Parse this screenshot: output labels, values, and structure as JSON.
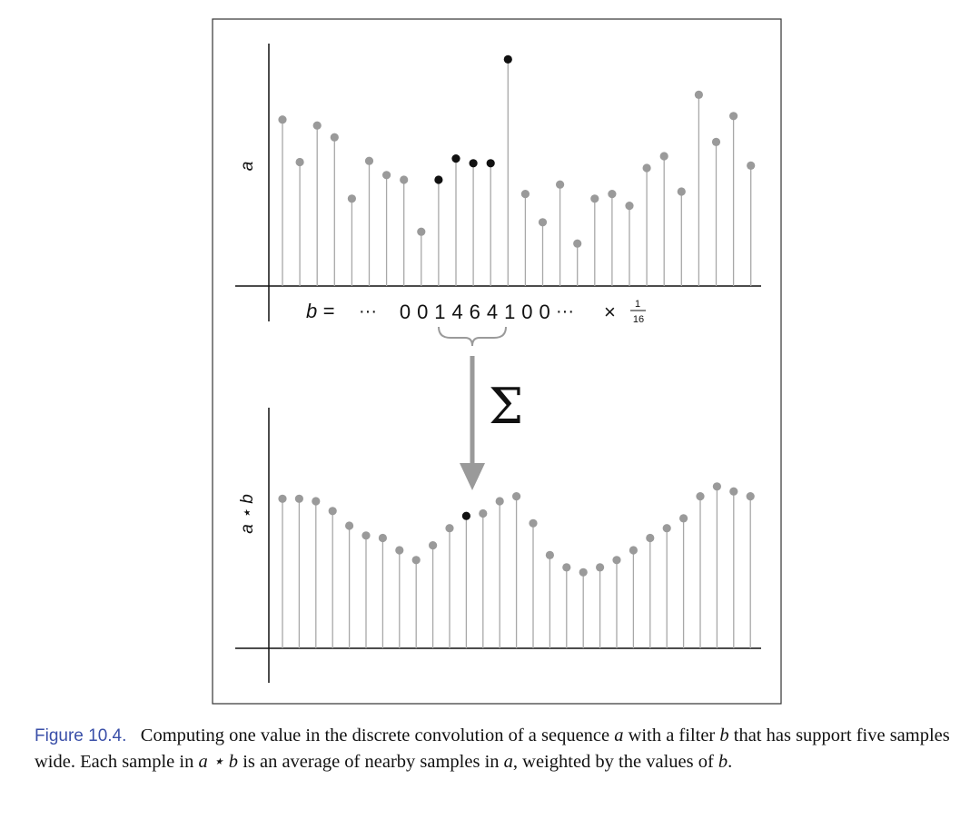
{
  "figure": {
    "top_plot": {
      "axis_label": "a",
      "values": [
        0.705,
        0.525,
        0.68,
        0.63,
        0.37,
        0.53,
        0.47,
        0.45,
        0.23,
        0.45,
        0.54,
        0.52,
        0.52,
        0.96,
        0.39,
        0.27,
        0.43,
        0.18,
        0.37,
        0.39,
        0.34,
        0.5,
        0.55,
        0.4,
        0.81,
        0.61,
        0.72,
        0.51
      ],
      "highlighted_indices": [
        9,
        10,
        11,
        12,
        13
      ]
    },
    "filter": {
      "prefix": "b =",
      "leading_dots": "···",
      "digits": [
        "0",
        "0",
        "1",
        "4",
        "6",
        "4",
        "1",
        "0",
        "0"
      ],
      "trailing_dots": "···",
      "times": "×",
      "scale_numerator": "1",
      "scale_denominator": "16"
    },
    "sigma_symbol": "Σ",
    "bottom_plot": {
      "axis_label": "a ⋆ b",
      "values": [
        0.61,
        0.61,
        0.6,
        0.56,
        0.5,
        0.46,
        0.45,
        0.4,
        0.36,
        0.42,
        0.49,
        0.54,
        0.55,
        0.6,
        0.62,
        0.51,
        0.38,
        0.33,
        0.31,
        0.33,
        0.36,
        0.4,
        0.45,
        0.49,
        0.53,
        0.62,
        0.66,
        0.64,
        0.62
      ],
      "highlighted_indices": [
        11
      ]
    }
  },
  "caption": {
    "label": "Figure 10.4.",
    "t1": "Computing one value in the discrete convolution of a sequence ",
    "v_a1": "a",
    "t2": " with a filter ",
    "v_b1": "b",
    "t3": " that has support five samples wide. Each sample in ",
    "v_conv": "a ⋆ b",
    "t4": " is an average of nearby samples in ",
    "v_a2": "a",
    "t5": ", weighted by the values of ",
    "v_b2": "b",
    "t6": "."
  }
}
